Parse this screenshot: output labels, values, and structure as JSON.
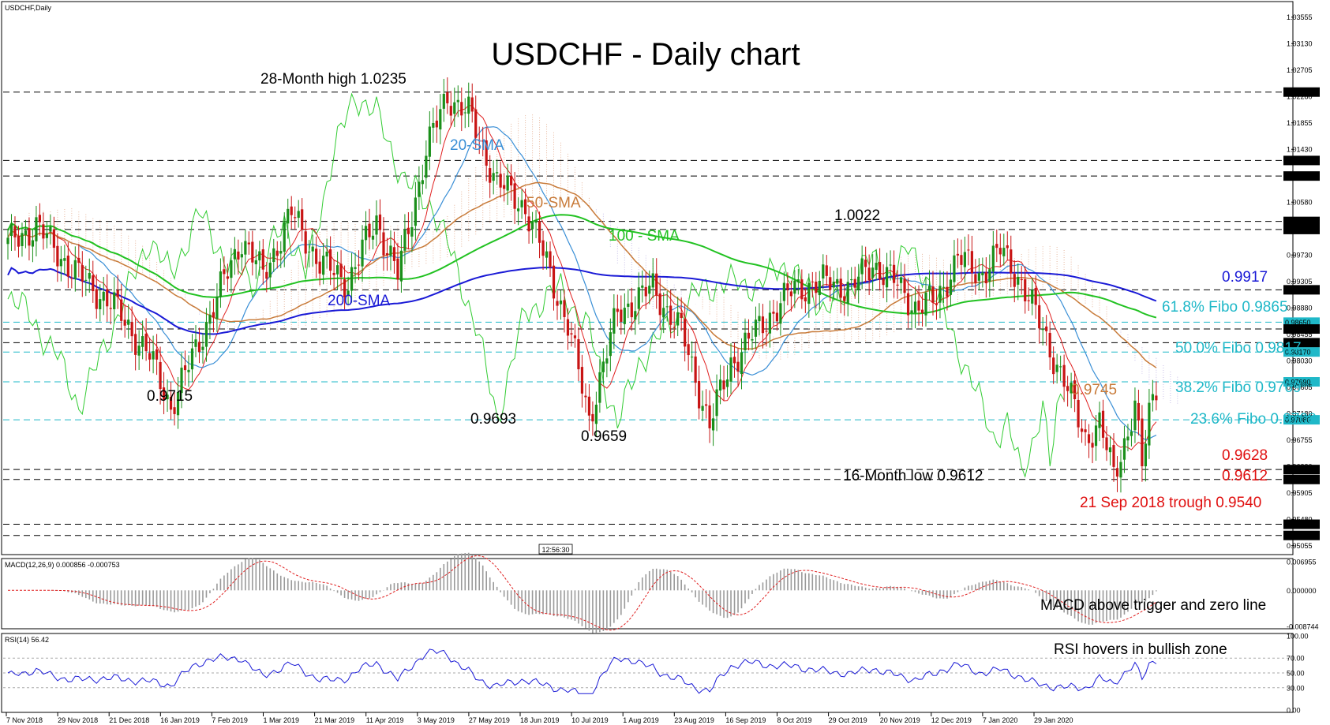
{
  "chart_data": {
    "type": "candlestick",
    "symbol_label": "USDCHF,Daily",
    "title": "USDCHF - Daily chart",
    "time_label": "12:56:30",
    "price_axis": {
      "min": 0.9495,
      "max": 1.0378,
      "ticks": [
        "1.03555",
        "1.03130",
        "1.02705",
        "1.02280",
        "1.01855",
        "1.01430",
        "1.01005",
        "1.00580",
        "1.00155",
        "0.99730",
        "0.99305",
        "0.98880",
        "0.98455",
        "0.98030",
        "0.97605",
        "0.97180",
        "0.96755",
        "0.96330",
        "0.95905",
        "0.95480",
        "0.95055"
      ]
    },
    "x_axis": {
      "labels": [
        "7 Nov 2018",
        "29 Nov 2018",
        "21 Dec 2018",
        "16 Jan 2019",
        "7 Feb 2019",
        "1 Mar 2019",
        "21 Mar 2019",
        "11 Apr 2019",
        "3 May 2019",
        "27 May 2019",
        "18 Jun 2019",
        "10 Jul 2019",
        "1 Aug 2019",
        "23 Aug 2019",
        "16 Sep 2019",
        "8 Oct 2019",
        "29 Oct 2019",
        "20 Nov 2019",
        "12 Dec 2019",
        "7 Jan 2020",
        "29 Jan 2020"
      ],
      "count": 325
    },
    "close_anchors": [
      [
        0,
        0.999
      ],
      [
        8,
        1.002
      ],
      [
        18,
        0.995
      ],
      [
        30,
        0.989
      ],
      [
        40,
        0.981
      ],
      [
        46,
        0.973
      ],
      [
        50,
        0.978
      ],
      [
        58,
        0.989
      ],
      [
        66,
        1.0
      ],
      [
        72,
        0.994
      ],
      [
        80,
        1.004
      ],
      [
        88,
        0.996
      ],
      [
        96,
        0.993
      ],
      [
        104,
        1.003
      ],
      [
        110,
        0.994
      ],
      [
        118,
        1.014
      ],
      [
        124,
        1.023
      ],
      [
        130,
        1.02
      ],
      [
        138,
        1.009
      ],
      [
        146,
        1.005
      ],
      [
        152,
        0.996
      ],
      [
        158,
        0.986
      ],
      [
        164,
        0.971
      ],
      [
        172,
        0.988
      ],
      [
        182,
        0.992
      ],
      [
        190,
        0.985
      ],
      [
        198,
        0.97
      ],
      [
        204,
        0.98
      ],
      [
        214,
        0.987
      ],
      [
        222,
        0.992
      ],
      [
        232,
        0.993
      ],
      [
        238,
        0.992
      ],
      [
        244,
        0.996
      ],
      [
        250,
        0.993
      ],
      [
        256,
        0.989
      ],
      [
        262,
        0.99
      ],
      [
        268,
        0.997
      ],
      [
        274,
        0.994
      ],
      [
        280,
        0.998
      ],
      [
        286,
        0.993
      ],
      [
        292,
        0.985
      ],
      [
        298,
        0.977
      ],
      [
        304,
        0.968
      ],
      [
        308,
        0.97
      ],
      [
        312,
        0.962
      ],
      [
        316,
        0.969
      ],
      [
        318,
        0.973
      ],
      [
        320,
        0.963
      ],
      [
        322,
        0.972
      ],
      [
        324,
        0.9765
      ]
    ],
    "price_levels": [
      {
        "value": 1.0235,
        "label": "1.02350",
        "style": "black"
      },
      {
        "value": 1.0125,
        "label": "1.01250",
        "style": "black"
      },
      {
        "value": 1.01,
        "label": "1.01000",
        "style": "black"
      },
      {
        "value": 1.0027,
        "label": "1.00270",
        "style": "black"
      },
      {
        "value": 1.0014,
        "label": "1.00140",
        "style": "black"
      },
      {
        "value": 0.9917,
        "label": "0.99170",
        "style": "black"
      },
      {
        "value": 0.9865,
        "label": "0.98650",
        "style": "cyan"
      },
      {
        "value": 0.9854,
        "label": "0.98540",
        "style": "black"
      },
      {
        "value": 0.9832,
        "label": "0.98320",
        "style": "black"
      },
      {
        "value": 0.9817,
        "label": "0.98170",
        "style": "cyan"
      },
      {
        "value": 0.9769,
        "label": "0.97690",
        "style": "cyan"
      },
      {
        "value": 0.9708,
        "label": "0.97080",
        "style": "cyan"
      },
      {
        "value": 0.9628,
        "label": "0.96280",
        "style": "black"
      },
      {
        "value": 0.9612,
        "label": "0.96120",
        "style": "black"
      },
      {
        "value": 0.954,
        "label": "0.95400",
        "style": "black"
      },
      {
        "value": 0.9522,
        "label": "0.95220",
        "style": "black"
      }
    ],
    "indicators": [
      {
        "name": "20-SMA",
        "color": "#3a8fd6"
      },
      {
        "name": "50-SMA",
        "color": "#c87b3a"
      },
      {
        "name": "100 - SMA",
        "color": "#22c222"
      },
      {
        "name": "200-SMA",
        "color": "#1a1ad6"
      }
    ],
    "annotations": [
      {
        "text": "28-Month high 1.0235",
        "color": "#000000"
      },
      {
        "text": "0.9715",
        "color": "#000000"
      },
      {
        "text": "0.9693",
        "color": "#000000"
      },
      {
        "text": "0.9659",
        "color": "#000000"
      },
      {
        "text": "1.0022",
        "color": "#000000"
      },
      {
        "text": "16-Month low 0.9612",
        "color": "#000000"
      },
      {
        "text": "0.9917",
        "color": "#1a1ad6"
      },
      {
        "text": "61.8% Fibo 0.9865",
        "color": "#1fb8c8"
      },
      {
        "text": "50.0% Fibo 0.9817",
        "color": "#1fb8c8"
      },
      {
        "text": "38.2% Fibo 0.9769",
        "color": "#1fb8c8"
      },
      {
        "text": "0.9745",
        "color": "#c87b3a"
      },
      {
        "text": "23.6% Fibo 0.9708",
        "color": "#1fb8c8"
      },
      {
        "text": "0.9628",
        "color": "#e01010"
      },
      {
        "text": "0.9612",
        "color": "#e01010"
      },
      {
        "text": "21 Sep 2018 trough 0.9540",
        "color": "#e01010"
      }
    ],
    "macd": {
      "label": "MACD(12,26,9) 0.000856 -0.000753",
      "ticks": [
        "0.006955",
        "0.000000",
        "-0.008744"
      ],
      "min": -0.008744,
      "max": 0.006955,
      "annotation": "MACD above trigger and zero line"
    },
    "rsi": {
      "label": "RSI(14) 56.42",
      "ticks": [
        "100.00",
        "70.00",
        "50.00",
        "30.00",
        "0.00"
      ],
      "min": 0,
      "max": 100,
      "annotation": "RSI hovers in bullish zone"
    }
  }
}
